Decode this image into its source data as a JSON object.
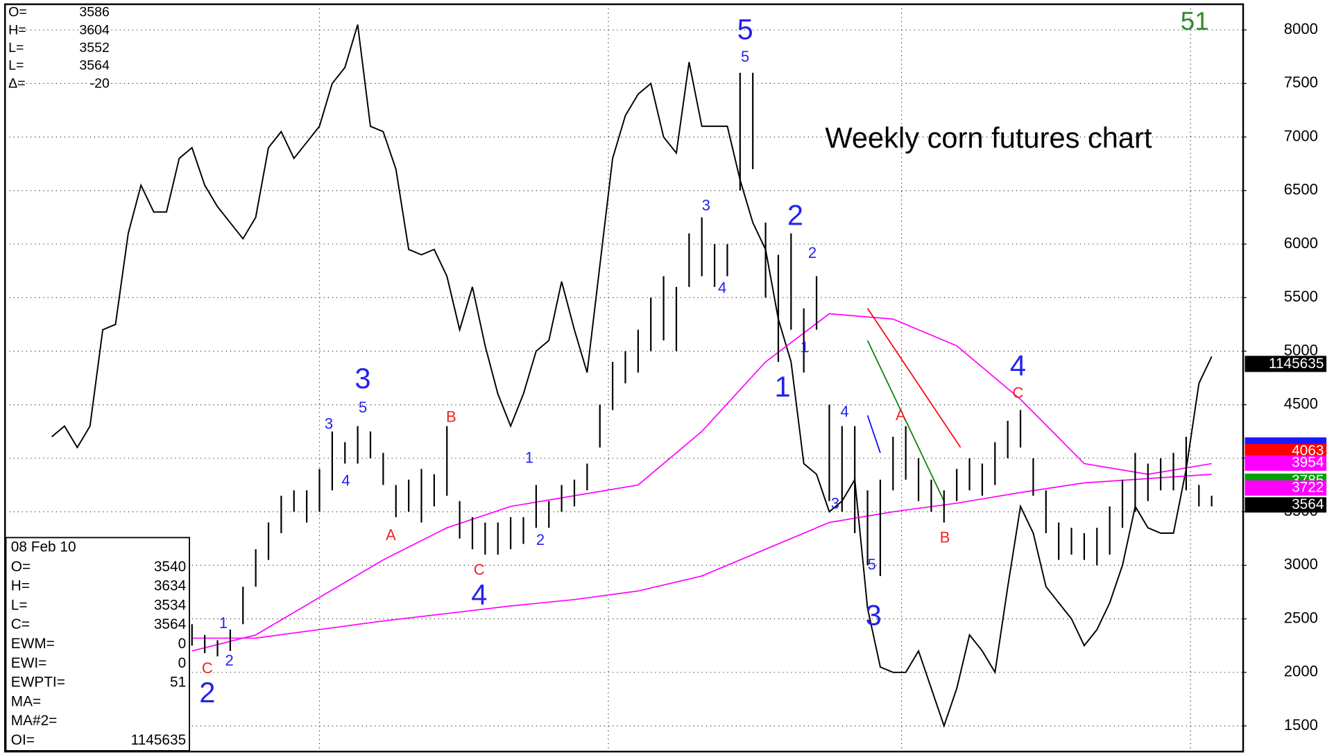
{
  "chart_data": {
    "type": "price-bar",
    "title": "Weekly corn futures chart",
    "ylim": [
      1260,
      8240
    ],
    "yticks": [
      1500,
      2000,
      2500,
      3000,
      3500,
      4000,
      4500,
      5000,
      5500,
      6000,
      6500,
      7000,
      7500,
      8000
    ],
    "xlim": [
      -14.67,
      82.47
    ],
    "grid": true,
    "bar_color": "#000000",
    "x": [
      0,
      1,
      2,
      3,
      4,
      5,
      6,
      7,
      8,
      9,
      10,
      11,
      12,
      13,
      14,
      15,
      16,
      17,
      18,
      19,
      20,
      21,
      22,
      23,
      24,
      25,
      26,
      27,
      28,
      29,
      30,
      31,
      32,
      33,
      34,
      35,
      36,
      37,
      38,
      39,
      40,
      41,
      42,
      43,
      44,
      45,
      46,
      47,
      48,
      49,
      50,
      51,
      52,
      53,
      54,
      55,
      56,
      57,
      58,
      59,
      60,
      61,
      62,
      63,
      64,
      65,
      66,
      67,
      68,
      69,
      70,
      71,
      72,
      73,
      74,
      75,
      76,
      77,
      78,
      79,
      80
    ],
    "high": [
      2450,
      2350,
      2300,
      2400,
      2800,
      3150,
      3400,
      3650,
      3700,
      3700,
      3900,
      4250,
      4150,
      4300,
      4250,
      4050,
      3750,
      3800,
      3900,
      3850,
      4300,
      3600,
      3450,
      3400,
      3400,
      3450,
      3450,
      3750,
      3600,
      3750,
      3800,
      3950,
      4500,
      4900,
      5000,
      5200,
      5500,
      5700,
      5600,
      6100,
      6250,
      6000,
      6000,
      7600,
      7600,
      6200,
      5900,
      6100,
      5400,
      5700,
      4500,
      4300,
      4300,
      3700,
      3800,
      4200,
      4300,
      4000,
      3800,
      3700,
      3900,
      4000,
      3950,
      4150,
      4350,
      4450,
      4000,
      3700,
      3400,
      3350,
      3300,
      3350,
      3550,
      3800,
      4050,
      3950,
      4000,
      4050,
      4200,
      3750,
      3650
    ],
    "low": [
      2250,
      2180,
      2150,
      2200,
      2450,
      2800,
      3050,
      3300,
      3500,
      3400,
      3500,
      3700,
      3950,
      3950,
      4000,
      3750,
      3450,
      3500,
      3400,
      3550,
      3650,
      3250,
      3150,
      3100,
      3100,
      3150,
      3200,
      3350,
      3350,
      3500,
      3550,
      3700,
      4100,
      4450,
      4700,
      4800,
      5000,
      5100,
      5000,
      5600,
      5700,
      5600,
      5700,
      6500,
      6700,
      5500,
      4900,
      5200,
      4800,
      5200,
      3600,
      3500,
      3300,
      3000,
      2900,
      3700,
      3800,
      3600,
      3500,
      3400,
      3600,
      3700,
      3650,
      3750,
      4000,
      4100,
      3650,
      3300,
      3050,
      3100,
      3050,
      3000,
      3100,
      3350,
      3500,
      3600,
      3700,
      3700,
      3700,
      3550,
      3550
    ],
    "series": [
      {
        "color": "#000000",
        "x": [
          -11,
          -10,
          -9,
          -8,
          -7,
          -6,
          -5,
          -4,
          -3,
          -2,
          -1,
          0,
          1,
          2,
          3,
          4,
          5,
          6,
          7,
          8,
          9,
          10,
          11,
          12,
          13,
          14,
          15,
          16,
          17,
          18,
          19,
          20,
          21,
          22,
          23,
          24,
          25,
          26,
          27,
          28,
          29,
          30,
          31,
          32,
          33,
          34,
          35,
          36,
          37,
          38,
          39,
          40,
          41,
          42,
          43,
          44,
          45,
          46,
          47,
          48,
          49,
          50,
          51,
          52,
          53,
          54,
          55,
          56,
          57,
          58,
          59,
          60,
          61,
          62,
          63,
          64,
          65,
          66,
          67,
          68,
          69,
          70,
          71,
          72,
          73,
          74,
          75,
          76,
          77,
          78,
          79,
          80
        ],
        "values": [
          4200,
          4300,
          4100,
          4300,
          5200,
          5250,
          6100,
          6550,
          6300,
          6300,
          6800,
          6900,
          6550,
          6350,
          6200,
          6050,
          6250,
          6900,
          7050,
          6800,
          6950,
          7100,
          7500,
          7650,
          8050,
          7100,
          7050,
          6700,
          5950,
          5900,
          5950,
          5700,
          5200,
          5600,
          5050,
          4600,
          4300,
          4600,
          5000,
          5100,
          5650,
          5200,
          4800,
          5800,
          6800,
          7200,
          7400,
          7500,
          7000,
          6850,
          7700,
          7100,
          7100,
          7100,
          6600,
          6200,
          5950,
          5300,
          4900,
          3950,
          3850,
          3500,
          3600,
          3800,
          2600,
          2050,
          2000,
          2000,
          2200,
          1850,
          1500,
          1850,
          2350,
          2200,
          2000,
          2800,
          3550,
          3300,
          2800,
          2650,
          2500,
          2250,
          2400,
          2650,
          3000,
          3550,
          3350,
          3300,
          3300,
          3900,
          4700,
          4950
        ]
      },
      {
        "color": "#ff00ff",
        "x": [
          0,
          5,
          10,
          15,
          20,
          25,
          30,
          35,
          40,
          45,
          50,
          55,
          60,
          65,
          70,
          75,
          80
        ],
        "values": [
          2200,
          2350,
          2700,
          3050,
          3350,
          3550,
          3650,
          3750,
          4250,
          4900,
          5350,
          5300,
          5050,
          4550,
          3950,
          3850,
          3950
        ]
      },
      {
        "color": "#ff00ff",
        "x": [
          0,
          5,
          10,
          15,
          20,
          25,
          30,
          35,
          40,
          45,
          50,
          55,
          60,
          65,
          70,
          75,
          80
        ],
        "values": [
          2320,
          2320,
          2400,
          2480,
          2550,
          2620,
          2680,
          2760,
          2900,
          3150,
          3400,
          3500,
          3580,
          3680,
          3770,
          3810,
          3850
        ]
      },
      {
        "color": "#ff0000",
        "x": [
          53,
          60.3
        ],
        "values": [
          5400,
          4100
        ]
      },
      {
        "color": "#008000",
        "x": [
          53,
          59
        ],
        "values": [
          5100,
          3600
        ]
      },
      {
        "color": "#0000ff",
        "x": [
          53,
          54
        ],
        "values": [
          4400,
          4050
        ]
      }
    ],
    "annotations": [
      {
        "text": "2",
        "color": "#2222ee"
      },
      {
        "text": "3",
        "color": "#2222ee"
      },
      {
        "text": "4",
        "color": "#2222ee"
      },
      {
        "text": "5",
        "color": "#2222ee"
      },
      {
        "text": "2",
        "color": "#2222ee"
      },
      {
        "text": "1",
        "color": "#2222ee"
      },
      {
        "text": "3",
        "color": "#2222ee"
      },
      {
        "text": "4",
        "color": "#2222ee"
      },
      {
        "text": "1",
        "color": "#2222ee"
      },
      {
        "text": "2",
        "color": "#2222ee"
      },
      {
        "text": "3",
        "color": "#2222ee"
      },
      {
        "text": "5",
        "color": "#2222ee"
      },
      {
        "text": "4",
        "color": "#2222ee"
      },
      {
        "text": "1",
        "color": "#2222ee"
      },
      {
        "text": "2",
        "color": "#2222ee"
      },
      {
        "text": "3",
        "color": "#2222ee"
      },
      {
        "text": "4",
        "color": "#2222ee"
      },
      {
        "text": "5",
        "color": "#2222ee"
      },
      {
        "text": "2",
        "color": "#2222ee"
      },
      {
        "text": "1",
        "color": "#2222ee"
      },
      {
        "text": "4",
        "color": "#2222ee"
      },
      {
        "text": "3",
        "color": "#2222ee"
      },
      {
        "text": "5",
        "color": "#2222ee"
      },
      {
        "text": "C",
        "color": "#ee2222"
      },
      {
        "text": "A",
        "color": "#ee2222"
      },
      {
        "text": "B",
        "color": "#ee2222"
      },
      {
        "text": "C",
        "color": "#ee2222"
      },
      {
        "text": "A",
        "color": "#ee2222"
      },
      {
        "text": "B",
        "color": "#ee2222"
      },
      {
        "text": "C",
        "color": "#ee2222"
      }
    ],
    "levels": [
      {
        "value": 4063,
        "color": "#ff0000"
      },
      {
        "value": 3954,
        "color": "#ff00ff"
      },
      {
        "value": 3785,
        "color": "#00a000"
      },
      {
        "value": 3722,
        "color": "#ff00ff"
      },
      {
        "value": 3564,
        "color": "#000000"
      }
    ],
    "info_top": [
      {
        "label": "O=",
        "value": 3586
      },
      {
        "label": "H=",
        "value": 3604
      },
      {
        "label": "L=",
        "value": 3552
      },
      {
        "label": "L=",
        "value": 3564
      },
      {
        "label": "Δ=",
        "value": -20
      }
    ],
    "info_bottom": {
      "date": "08 Feb 10",
      "rows": [
        {
          "label": "O=",
          "value": 3540
        },
        {
          "label": "H=",
          "value": 3634
        },
        {
          "label": "L=",
          "value": 3534
        },
        {
          "label": "C=",
          "value": 3564
        },
        {
          "label": "EWM=",
          "value": 0
        },
        {
          "label": "EWI=",
          "value": 0
        },
        {
          "label": "EWPTI=",
          "value": 51
        },
        {
          "label": "MA="
        },
        {
          "label": "MA#2="
        },
        {
          "label": "OI=",
          "value": 1145635
        }
      ]
    }
  }
}
